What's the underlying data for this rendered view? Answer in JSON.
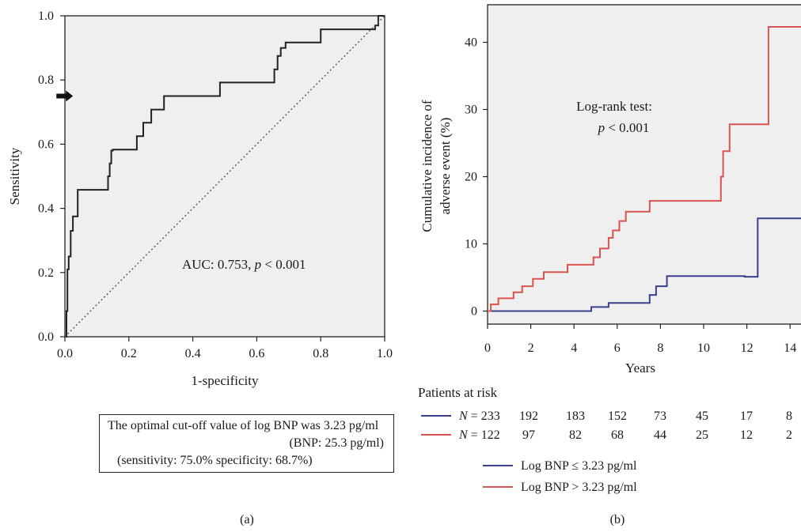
{
  "chart_data": [
    {
      "type": "line",
      "panel_label": "(a)",
      "xlabel": "1-specificity",
      "ylabel": "Sensitivity",
      "xlim": [
        0,
        1
      ],
      "ylim": [
        0,
        1
      ],
      "xticks": [
        "0.0",
        "0.2",
        "0.4",
        "0.6",
        "0.8",
        "1.0"
      ],
      "yticks": [
        "0.0",
        "0.2",
        "0.4",
        "0.6",
        "0.8",
        "1.0"
      ],
      "grid": false,
      "annotation": {
        "prefix": "AUC: 0.753, ",
        "p": "p",
        "suffix": " < 0.001"
      },
      "arrow_point": [
        0.31,
        0.75
      ],
      "series": [
        {
          "style": "step",
          "color": "#222222",
          "x": [
            0,
            0.005,
            0.005,
            0.008,
            0.008,
            0.012,
            0.012,
            0.018,
            0.018,
            0.025,
            0.025,
            0.04,
            0.04,
            0.135,
            0.135,
            0.14,
            0.14,
            0.145,
            0.145,
            0.15,
            0.15,
            0.225,
            0.225,
            0.245,
            0.245,
            0.27,
            0.27,
            0.31,
            0.31,
            0.485,
            0.485,
            0.655,
            0.655,
            0.665,
            0.665,
            0.675,
            0.675,
            0.69,
            0.69,
            0.8,
            0.8,
            0.97,
            0.97,
            0.98,
            0.98,
            1.0
          ],
          "y": [
            0,
            0,
            0.08,
            0.08,
            0.21,
            0.21,
            0.25,
            0.25,
            0.33,
            0.33,
            0.375,
            0.375,
            0.458,
            0.458,
            0.5,
            0.5,
            0.54,
            0.54,
            0.58,
            0.58,
            0.583,
            0.583,
            0.625,
            0.625,
            0.667,
            0.667,
            0.708,
            0.708,
            0.75,
            0.75,
            0.792,
            0.792,
            0.833,
            0.833,
            0.875,
            0.875,
            0.9,
            0.9,
            0.917,
            0.917,
            0.958,
            0.958,
            0.97,
            0.97,
            1.0,
            1.0
          ]
        },
        {
          "style": "dotted",
          "color": "#555555",
          "x": [
            0,
            1
          ],
          "y": [
            0,
            1
          ]
        }
      ],
      "note_lines": [
        "The optimal cut-off value of log BNP was 3.23 pg/ml",
        "(BNP: 25.3 pg/ml)",
        "(sensitivity: 75.0% specificity: 68.7%)"
      ]
    },
    {
      "type": "line",
      "panel_label": "(b)",
      "xlabel": "Years",
      "ylabel_lines": [
        "Cumulative incidence of",
        "adverse event (%)"
      ],
      "xlim": [
        0,
        15
      ],
      "ylim": [
        -2,
        45
      ],
      "xticks": [
        "0",
        "2",
        "4",
        "6",
        "8",
        "10",
        "12",
        "14"
      ],
      "yticks": [
        "0",
        "10",
        "20",
        "30",
        "40"
      ],
      "grid": false,
      "annotation_lines": [
        "Log-rank test:",
        "< 0.001"
      ],
      "annotation_p": "p",
      "series": [
        {
          "name": "Log BNP ≤ 3.23 pg/ml",
          "style": "step",
          "color": "#3b3f8f",
          "x": [
            0,
            4.8,
            4.8,
            5.6,
            5.6,
            7.5,
            7.5,
            7.8,
            7.8,
            8.3,
            8.3,
            11.9,
            11.9,
            12.5,
            12.5,
            15
          ],
          "y": [
            0,
            0,
            0.6,
            0.6,
            1.2,
            1.2,
            2.4,
            2.4,
            3.7,
            3.7,
            5.2,
            5.2,
            5.1,
            5.1,
            13.8,
            13.8
          ]
        },
        {
          "name": "Log BNP > 3.23 pg/ml",
          "style": "step",
          "color": "#d9534f",
          "x": [
            0,
            0.15,
            0.15,
            0.5,
            0.5,
            1.2,
            1.2,
            1.6,
            1.6,
            2.1,
            2.1,
            2.6,
            2.6,
            3.7,
            3.7,
            4.9,
            4.9,
            5.2,
            5.2,
            5.6,
            5.6,
            5.8,
            5.8,
            6.1,
            6.1,
            6.4,
            6.4,
            7.5,
            7.5,
            10.8,
            10.8,
            10.9,
            10.9,
            11.2,
            11.2,
            13.0,
            13.0,
            15
          ],
          "y": [
            0,
            0,
            1.0,
            1.0,
            1.9,
            1.9,
            2.8,
            2.8,
            3.7,
            3.7,
            4.8,
            4.8,
            5.8,
            5.8,
            6.9,
            6.9,
            8.0,
            8.0,
            9.3,
            9.3,
            10.9,
            10.9,
            12.0,
            12.0,
            13.4,
            13.4,
            14.8,
            14.8,
            16.4,
            16.4,
            20.0,
            20.0,
            23.8,
            23.8,
            27.8,
            27.8,
            42.3,
            42.3
          ]
        }
      ],
      "risk_table": {
        "title": "Patients at risk",
        "rows": [
          {
            "color": "#3b3f8f",
            "n_label": "N",
            "n_prefix": " = ",
            "values": [
              "233",
              "192",
              "183",
              "152",
              "73",
              "45",
              "17",
              "8"
            ]
          },
          {
            "color": "#d9534f",
            "n_label": "N",
            "n_prefix": " = ",
            "values": [
              "122",
              "97",
              "82",
              "68",
              "44",
              "25",
              "12",
              "2"
            ]
          }
        ]
      }
    }
  ]
}
